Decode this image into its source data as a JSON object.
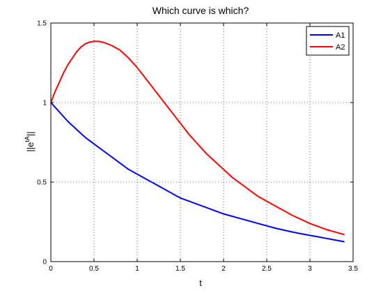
{
  "chart_data": {
    "type": "line",
    "title": "Which curve is which?",
    "xlabel": "t",
    "ylabel": "||e",
    "ylabel_superscript": "tA",
    "ylabel_suffix": "||",
    "xlim": [
      0,
      3.5
    ],
    "ylim": [
      0,
      1.5
    ],
    "xticks": [
      "0",
      "0.5",
      "1",
      "1.5",
      "2",
      "2.5",
      "3",
      "3.5"
    ],
    "yticks": [
      "0",
      "0.5",
      "1",
      "1.5"
    ],
    "grid": true,
    "legend_position": "top-right",
    "series": [
      {
        "name": "A1",
        "color": "#0000ff",
        "x": [
          0,
          0.1,
          0.2,
          0.3,
          0.4,
          0.5,
          0.6,
          0.7,
          0.8,
          0.9,
          1.0,
          1.1,
          1.2,
          1.3,
          1.4,
          1.5,
          1.6,
          1.7,
          1.8,
          1.9,
          2.0,
          2.1,
          2.2,
          2.3,
          2.4,
          2.5,
          2.6,
          2.7,
          2.8,
          2.9,
          3.0,
          3.1,
          3.2,
          3.3,
          3.4
        ],
        "y": [
          1.0,
          0.94,
          0.88,
          0.83,
          0.78,
          0.74,
          0.7,
          0.66,
          0.62,
          0.58,
          0.55,
          0.52,
          0.49,
          0.46,
          0.43,
          0.4,
          0.38,
          0.36,
          0.34,
          0.32,
          0.3,
          0.285,
          0.27,
          0.255,
          0.24,
          0.225,
          0.21,
          0.198,
          0.186,
          0.175,
          0.165,
          0.155,
          0.145,
          0.135,
          0.125
        ]
      },
      {
        "name": "A2",
        "color": "#ff0000",
        "x": [
          0,
          0.05,
          0.1,
          0.15,
          0.2,
          0.25,
          0.3,
          0.35,
          0.4,
          0.45,
          0.5,
          0.55,
          0.6,
          0.7,
          0.8,
          0.9,
          1.0,
          1.1,
          1.2,
          1.3,
          1.4,
          1.5,
          1.6,
          1.7,
          1.8,
          1.9,
          2.0,
          2.1,
          2.2,
          2.3,
          2.4,
          2.5,
          2.6,
          2.7,
          2.8,
          2.9,
          3.0,
          3.1,
          3.2,
          3.3,
          3.4
        ],
        "y": [
          1.0,
          1.07,
          1.13,
          1.19,
          1.24,
          1.28,
          1.32,
          1.35,
          1.37,
          1.38,
          1.385,
          1.385,
          1.38,
          1.36,
          1.33,
          1.28,
          1.22,
          1.15,
          1.08,
          1.01,
          0.94,
          0.87,
          0.8,
          0.74,
          0.68,
          0.63,
          0.58,
          0.53,
          0.49,
          0.45,
          0.41,
          0.38,
          0.35,
          0.32,
          0.29,
          0.265,
          0.24,
          0.22,
          0.2,
          0.185,
          0.17
        ]
      }
    ]
  }
}
